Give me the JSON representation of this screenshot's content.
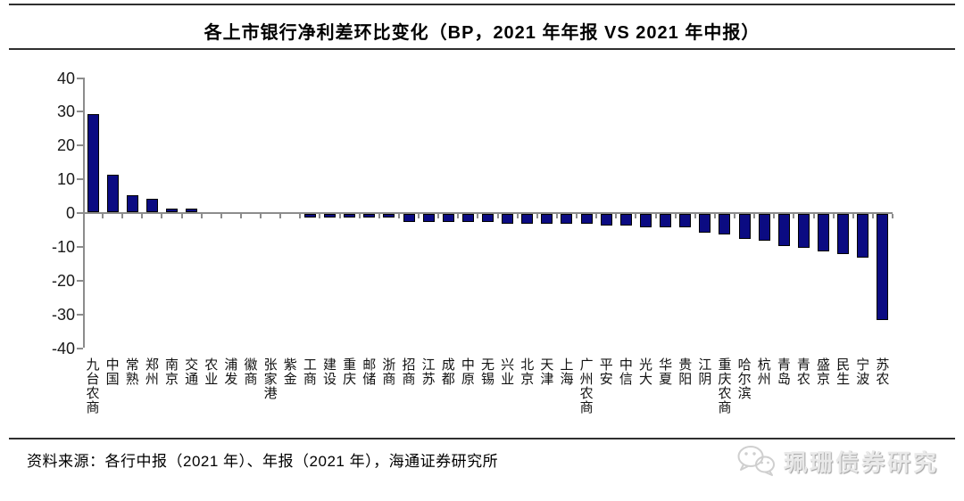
{
  "title": "各上市银行净利差环比变化（BP，2021 年年报 VS 2021 年中报）",
  "footer": {
    "source_text": "资料来源：各行中报（2021 年）、年报（2021 年），海通证券研究所",
    "watermark": "珮珊债券研究",
    "watermark_icon": "wechat-icon"
  },
  "chart_data": {
    "type": "bar",
    "title": "各上市银行净利差环比变化（BP，2021 年年报 VS 2021 年中报）",
    "unit": "BP",
    "categories": [
      "九台农商",
      "中国",
      "常熟",
      "郑州",
      "南京",
      "交通",
      "农业",
      "浦发",
      "徽商",
      "张家港",
      "紫金",
      "工商",
      "建设",
      "重庆",
      "邮储",
      "浙商",
      "招商",
      "江苏",
      "成都",
      "中原",
      "无锡",
      "兴业",
      "北京",
      "天津",
      "上海",
      "广州农商",
      "平安",
      "中信",
      "光大",
      "华夏",
      "贵阳",
      "江阴",
      "重庆农商",
      "哈尔滨",
      "杭州",
      "青岛",
      "青农",
      "盛京",
      "民生",
      "宁波",
      "苏农"
    ],
    "values": [
      29,
      11,
      5,
      4,
      1,
      1,
      0,
      0,
      0,
      0,
      0,
      -1,
      -1,
      -1,
      -1,
      -1,
      -2.5,
      -2.5,
      -2.5,
      -2.5,
      -2.5,
      -3,
      -3,
      -3,
      -3,
      -3,
      -3.5,
      -3.5,
      -4,
      -4,
      -4,
      -5.5,
      -6,
      -7.5,
      -8,
      -9.5,
      -10,
      -11,
      -12,
      -13,
      -31.5
    ],
    "ylim": [
      -40,
      40
    ],
    "ytick_interval": 10,
    "grid": "off",
    "legend": "none",
    "bar_color": "#0b0b82",
    "bar_border_color": "#000000",
    "axis_color": "#8c8c8c"
  }
}
